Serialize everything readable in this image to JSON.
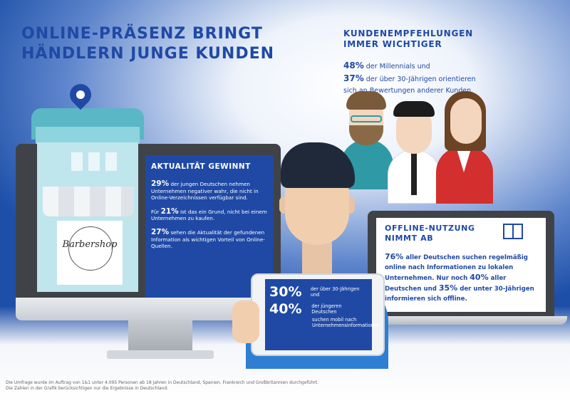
{
  "headline": {
    "line1": "ONLINE-PRÄSENZ BRINGT",
    "line2": "HÄNDLERN JUNGE KUNDEN"
  },
  "kundenempfehlungen": {
    "title_line1": "KUNDENEMPFEHLUNGEN",
    "title_line2": "IMMER WICHTIGER",
    "stat1_value": "48%",
    "stat1_text": "der Millennials und",
    "stat2_value": "37%",
    "stat2_text": "der über 30-Jährigen orientieren",
    "stat2_text2": "sich an Bewertungen anderer Kunden."
  },
  "shop": {
    "sign_text": "Barbershop"
  },
  "aktualitaet": {
    "title": "AKTUALITÄT GEWINNT",
    "p1_value": "29%",
    "p1_text": "der jungen Deutschen nehmen Unternehmen negativer wahr, die nicht in Online-Verzeichnissen verfügbar sind.",
    "p2_pre": "Für",
    "p2_value": "21%",
    "p2_text": "ist das ein Grund, nicht bei einem Unternehmen zu kaufen.",
    "p3_value": "27%",
    "p3_text": "sehen die Aktualität der gefundenen Information als wichtigen Vorteil von Online-Quellen."
  },
  "mobil": {
    "stat1_value": "30%",
    "stat1_text": "der über 30-Jährigen und",
    "stat2_value": "40%",
    "stat2_text": "der jüngeren Deutschen",
    "stat2_text2": "suchen mobil nach Unternehmensinformationen."
  },
  "offline": {
    "title_line1": "OFFLINE-NUTZUNG",
    "title_line2": "NIMMT AB",
    "v1": "76%",
    "t1": "aller Deutschen suchen regelmäßig online nach Informationen zu lokalen Unternehmen. Nur noch",
    "v2": "40%",
    "t2": "aller Deutschen und",
    "v3": "35%",
    "t3": "der unter 30-Jährigen informieren sich offline."
  },
  "footer": {
    "line1": "Die Umfrage wurde im Auftrag von 1&1  unter 4.095 Personen ab 18 Jahren in Deutschland, Spanien, Frankreich und Großbritannien durchgeführt.",
    "line2": "Die Zahlen in der Grafik berücksichtigen nur die Ergebnisse in Deutschland."
  },
  "colors": {
    "brand_blue": "#1f49a5",
    "accent_teal": "#5ab7c5",
    "shirt_blue": "#2e7fd4"
  },
  "icons": [
    "location-pin-icon",
    "book-icon"
  ]
}
